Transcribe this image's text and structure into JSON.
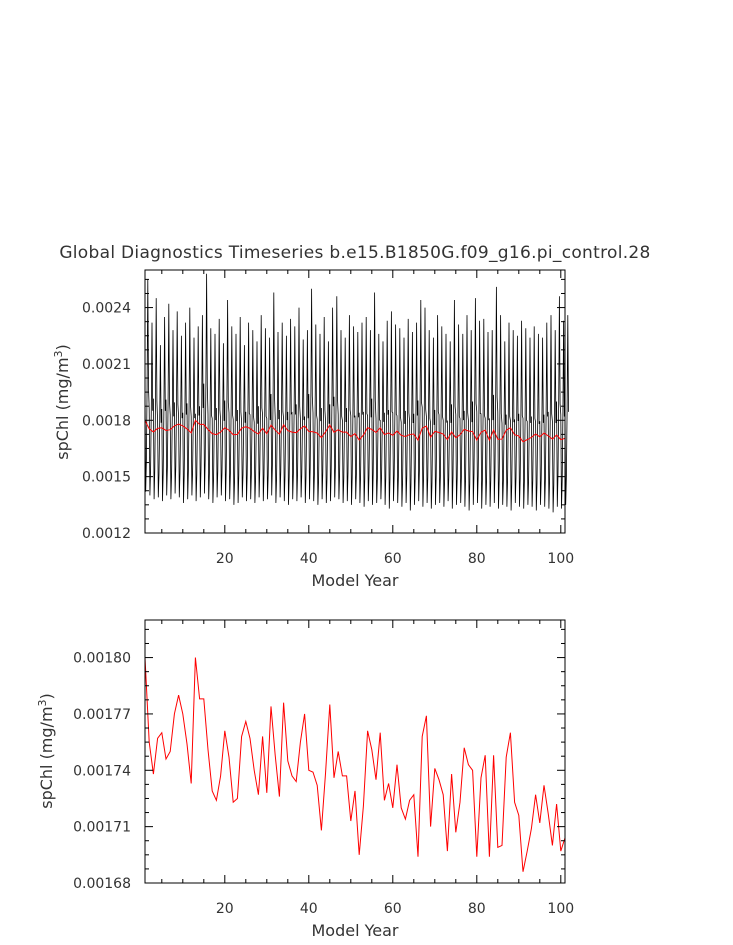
{
  "title": "Global Diagnostics Timeseries b.e15.B1850G.f09_g16.pi_control.28",
  "chart_data": [
    {
      "type": "line",
      "xlabel": "Model Year",
      "ylabel": "spChl (mg/m",
      "ylabel_sup": "3",
      "ylabel_end": ")",
      "xlim": [
        1,
        101
      ],
      "ylim": [
        0.0012,
        0.0026
      ],
      "xticks": [
        20,
        40,
        60,
        80,
        100
      ],
      "yticks": [
        "0.0012",
        "0.0015",
        "0.0018",
        "0.0021",
        "0.0024"
      ],
      "grid": false,
      "series": [
        {
          "kind": "monthly",
          "color": "#000000",
          "trough_values": [
            0.00142,
            0.0014,
            0.00138,
            0.00139,
            0.00137,
            0.0014,
            0.00138,
            0.00141,
            0.00139,
            0.00136,
            0.00138,
            0.0014,
            0.00137,
            0.00139,
            0.00141,
            0.00138,
            0.00136,
            0.00139,
            0.0014,
            0.00137,
            0.00138,
            0.00135,
            0.00136,
            0.00139,
            0.00137,
            0.00138,
            0.00136,
            0.00139,
            0.00137,
            0.00138,
            0.0014,
            0.00136,
            0.00139,
            0.00137,
            0.00135,
            0.00138,
            0.00137,
            0.00139,
            0.00136,
            0.00138,
            0.00137,
            0.00135,
            0.00138,
            0.00136,
            0.00137,
            0.00139,
            0.00138,
            0.00136,
            0.00137,
            0.00135,
            0.00138,
            0.00136,
            0.00134,
            0.00137,
            0.00135,
            0.00136,
            0.00138,
            0.00135,
            0.00133,
            0.00137,
            0.00136,
            0.00134,
            0.00136,
            0.00132,
            0.00135,
            0.00137,
            0.00134,
            0.00136,
            0.00133,
            0.00135,
            0.00136,
            0.00134,
            0.00137,
            0.00133,
            0.00135,
            0.00136,
            0.00134,
            0.00132,
            0.00135,
            0.00136,
            0.00133,
            0.00135,
            0.00134,
            0.00136,
            0.00133,
            0.00135,
            0.00134,
            0.00132,
            0.00136,
            0.00134,
            0.00133,
            0.00135,
            0.00134,
            0.00132,
            0.00135,
            0.00134,
            0.00133,
            0.00131,
            0.00134,
            0.00133,
            0.00135
          ],
          "peak_values": [
            0.00255,
            0.00232,
            0.00245,
            0.0022,
            0.00235,
            0.00242,
            0.00228,
            0.00238,
            0.00225,
            0.00232,
            0.0024,
            0.00224,
            0.0023,
            0.00236,
            0.00258,
            0.00229,
            0.00226,
            0.00234,
            0.00221,
            0.00244,
            0.0023,
            0.00226,
            0.00235,
            0.0022,
            0.00232,
            0.00228,
            0.00222,
            0.00236,
            0.00229,
            0.00224,
            0.00248,
            0.00227,
            0.00232,
            0.00225,
            0.00234,
            0.0023,
            0.0024,
            0.00223,
            0.00228,
            0.0025,
            0.00231,
            0.00226,
            0.00235,
            0.00222,
            0.0024,
            0.00246,
            0.00228,
            0.00224,
            0.00236,
            0.0023,
            0.00227,
            0.00232,
            0.00235,
            0.00228,
            0.00248,
            0.00226,
            0.00222,
            0.00233,
            0.00238,
            0.00231,
            0.00229,
            0.00224,
            0.00234,
            0.00227,
            0.00232,
            0.00244,
            0.0024,
            0.00228,
            0.00224,
            0.00236,
            0.0023,
            0.00226,
            0.00222,
            0.00244,
            0.00231,
            0.00226,
            0.00236,
            0.00228,
            0.00245,
            0.00233,
            0.00234,
            0.00227,
            0.00228,
            0.00251,
            0.00236,
            0.00222,
            0.00232,
            0.00228,
            0.00225,
            0.00233,
            0.00229,
            0.00224,
            0.0023,
            0.00226,
            0.00224,
            0.00232,
            0.00236,
            0.00228,
            0.00246,
            0.00233,
            0.00236
          ]
        },
        {
          "kind": "annual",
          "color": "#ff0000",
          "ref": "annual_mean"
        }
      ]
    },
    {
      "type": "line",
      "xlabel": "Model Year",
      "ylabel": "spChl (mg/m",
      "ylabel_sup": "3",
      "ylabel_end": ")",
      "xlim": [
        1,
        101
      ],
      "ylim": [
        0.00168,
        0.00182
      ],
      "xticks": [
        20,
        40,
        60,
        80,
        100
      ],
      "yticks": [
        "0.00168",
        "0.00171",
        "0.00174",
        "0.00177",
        "0.00180"
      ],
      "grid": false,
      "series": [
        {
          "kind": "annual",
          "color": "#ff0000",
          "x": [
            1,
            2,
            3,
            4,
            5,
            6,
            7,
            8,
            9,
            10,
            11,
            12,
            13,
            14,
            15,
            16,
            17,
            18,
            19,
            20,
            21,
            22,
            23,
            24,
            25,
            26,
            27,
            28,
            29,
            30,
            31,
            32,
            33,
            34,
            35,
            36,
            37,
            38,
            39,
            40,
            41,
            42,
            43,
            44,
            45,
            46,
            47,
            48,
            49,
            50,
            51,
            52,
            53,
            54,
            55,
            56,
            57,
            58,
            59,
            60,
            61,
            62,
            63,
            64,
            65,
            66,
            67,
            68,
            69,
            70,
            71,
            72,
            73,
            74,
            75,
            76,
            77,
            78,
            79,
            80,
            81,
            82,
            83,
            84,
            85,
            86,
            87,
            88,
            89,
            90,
            91,
            92,
            93,
            94,
            95,
            96,
            97,
            98,
            99,
            100,
            101
          ],
          "values": [
            0.0018,
            0.001755,
            0.001738,
            0.001757,
            0.00176,
            0.001746,
            0.00175,
            0.00177,
            0.00178,
            0.00177,
            0.001754,
            0.001733,
            0.0018,
            0.001778,
            0.001778,
            0.001751,
            0.001729,
            0.001724,
            0.001737,
            0.001761,
            0.001747,
            0.001723,
            0.001725,
            0.001758,
            0.001766,
            0.001757,
            0.00174,
            0.001727,
            0.001758,
            0.001728,
            0.001774,
            0.001748,
            0.001726,
            0.001776,
            0.001745,
            0.001737,
            0.001734,
            0.001755,
            0.00177,
            0.00174,
            0.001739,
            0.001732,
            0.001708,
            0.001739,
            0.001775,
            0.001736,
            0.00175,
            0.001737,
            0.001737,
            0.001713,
            0.001729,
            0.001695,
            0.001721,
            0.001761,
            0.001751,
            0.001735,
            0.00176,
            0.001724,
            0.001733,
            0.00172,
            0.001743,
            0.00172,
            0.001714,
            0.001724,
            0.001727,
            0.001694,
            0.001758,
            0.001769,
            0.00171,
            0.001741,
            0.001735,
            0.001727,
            0.001697,
            0.001738,
            0.001707,
            0.001723,
            0.001752,
            0.001743,
            0.00174,
            0.001694,
            0.001736,
            0.001748,
            0.001694,
            0.001748,
            0.001699,
            0.0017,
            0.001747,
            0.00176,
            0.001723,
            0.001716,
            0.001686,
            0.001697,
            0.001709,
            0.001727,
            0.001712,
            0.001732,
            0.001717,
            0.0017,
            0.001722,
            0.001697,
            0.001704
          ]
        }
      ]
    }
  ]
}
